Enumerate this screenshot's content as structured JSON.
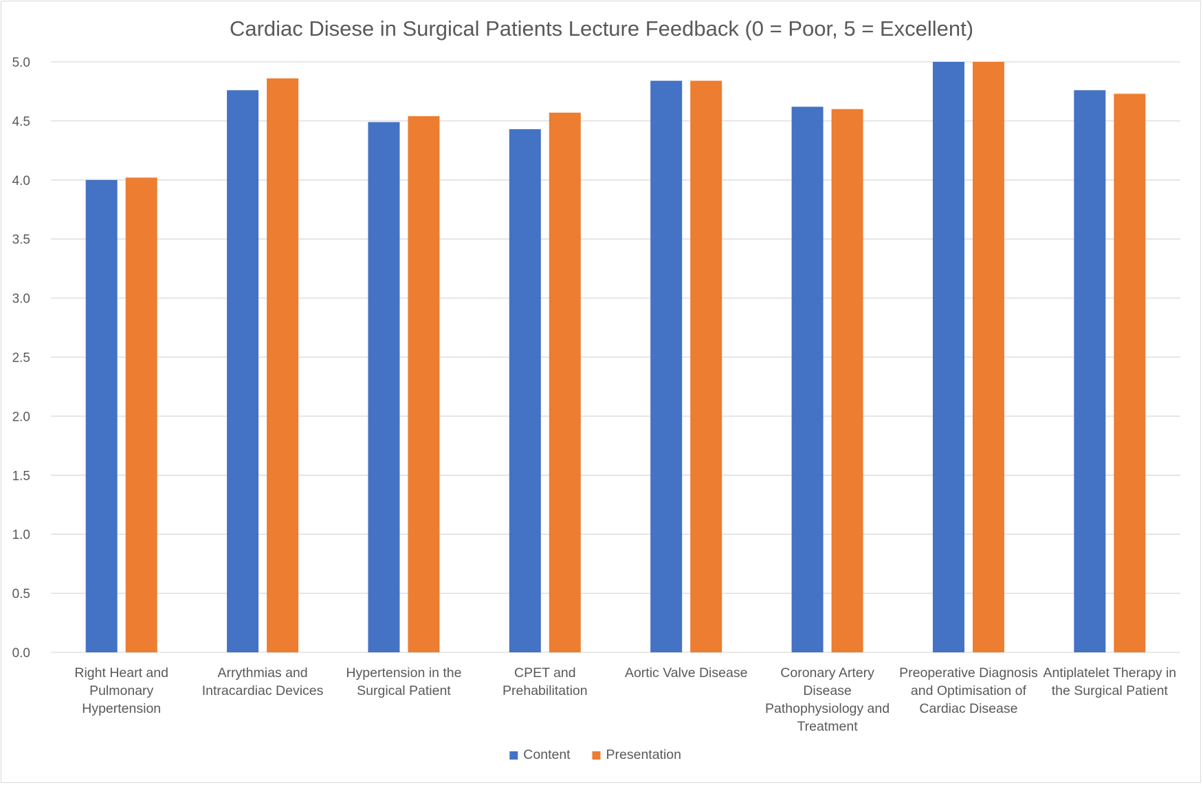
{
  "chart_data": {
    "type": "bar",
    "title": "Cardiac Disese in Surgical Patients Lecture Feedback (0 = Poor, 5 = Excellent)",
    "xlabel": "",
    "ylabel": "",
    "ylim": [
      0,
      5
    ],
    "yticks": [
      "0.0",
      "0.5",
      "1.0",
      "1.5",
      "2.0",
      "2.5",
      "3.0",
      "3.5",
      "4.0",
      "4.5",
      "5.0"
    ],
    "grid": true,
    "legend_position": "bottom",
    "categories": [
      [
        "Right Heart and",
        "Pulmonary",
        "Hypertension"
      ],
      [
        "Arrythmias and",
        "Intracardiac Devices"
      ],
      [
        "Hypertension in the",
        "Surgical Patient"
      ],
      [
        "CPET and",
        "Prehabilitation"
      ],
      [
        "Aortic Valve Disease"
      ],
      [
        "Coronary Artery",
        "Disease",
        "Pathophysiology and",
        "Treatment"
      ],
      [
        "Preoperative Diagnosis",
        "and Optimisation of",
        "Cardiac Disease"
      ],
      [
        "Antiplatelet Therapy in",
        "the Surgical Patient"
      ]
    ],
    "series": [
      {
        "name": "Content",
        "color": "#4472c4",
        "values": [
          4.0,
          4.76,
          4.49,
          4.43,
          4.84,
          4.62,
          5.0,
          4.76
        ]
      },
      {
        "name": "Presentation",
        "color": "#ed7d31",
        "values": [
          4.02,
          4.86,
          4.54,
          4.57,
          4.84,
          4.6,
          5.0,
          4.73
        ]
      }
    ]
  }
}
